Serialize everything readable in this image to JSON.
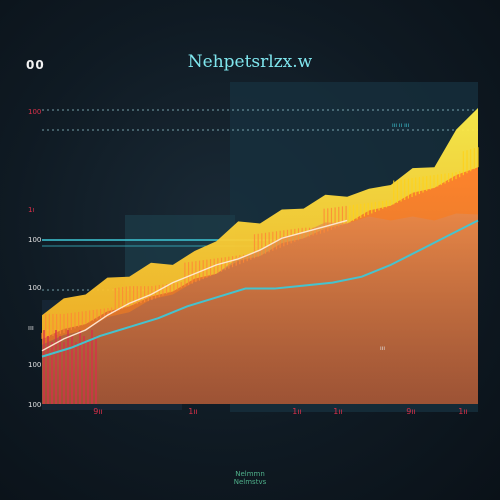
{
  "corner_label": "00",
  "footer_lines": [
    "Nelmmn",
    "Nelmstvs"
  ],
  "colors": {
    "background": "#0f1a23",
    "title": "#7fe6ee",
    "orange": "#f47a2a",
    "yellow": "#ffd21a",
    "red": "#d9304a",
    "cyan": "#3ec7d6",
    "white_line": "#ffe9d6"
  },
  "chart_data": {
    "type": "area",
    "title": "Nehpetsrlzx.w",
    "xlabel": "",
    "ylabel": "",
    "x_tick_labels": [
      "9ıı",
      "1ıı",
      "1ıı",
      "1ıı",
      "9ıı",
      "1ıı"
    ],
    "y_tick_labels": [
      "100",
      "1ı",
      "100",
      "100",
      "ııı",
      "100",
      "100"
    ],
    "annotations": [
      "ııı ıı ııı",
      "ııı"
    ],
    "x": [
      0,
      5,
      10,
      15,
      20,
      25,
      30,
      35,
      40,
      45,
      50,
      55,
      60,
      65,
      70,
      75,
      80,
      85,
      90,
      95,
      100
    ],
    "ylim": [
      0,
      100
    ],
    "series": [
      {
        "values": [
          30,
          33,
          37,
          40,
          43,
          45,
          47,
          49,
          55,
          59,
          61,
          63,
          66,
          68,
          70,
          70,
          74,
          77,
          80,
          90,
          100
        ]
      },
      {
        "values": [
          22,
          24,
          27,
          30,
          33,
          35,
          38,
          41,
          44,
          47,
          50,
          53,
          56,
          58,
          61,
          64,
          67,
          70,
          73,
          76,
          80
        ]
      },
      {
        "values": [
          20,
          22,
          25,
          28,
          31,
          34,
          37,
          40,
          44,
          48,
          52,
          55,
          58,
          60,
          61,
          62,
          62,
          62,
          62,
          63,
          64
        ]
      },
      {
        "values": [
          null,
          null,
          null,
          null,
          null,
          null,
          null,
          null,
          null,
          null,
          null,
          null,
          null,
          null,
          null,
          null,
          null,
          null,
          null,
          null,
          null
        ]
      }
    ],
    "lines": [
      {
        "values": [
          18,
          22,
          25,
          30,
          34,
          37,
          41,
          44,
          47,
          49,
          52,
          56,
          58,
          60,
          62
        ]
      },
      {
        "values": [
          16,
          19,
          23,
          26,
          29,
          33,
          36,
          39,
          39,
          40,
          41,
          43,
          47,
          52,
          57,
          62
        ]
      }
    ],
    "grid": true,
    "legend": "none"
  }
}
